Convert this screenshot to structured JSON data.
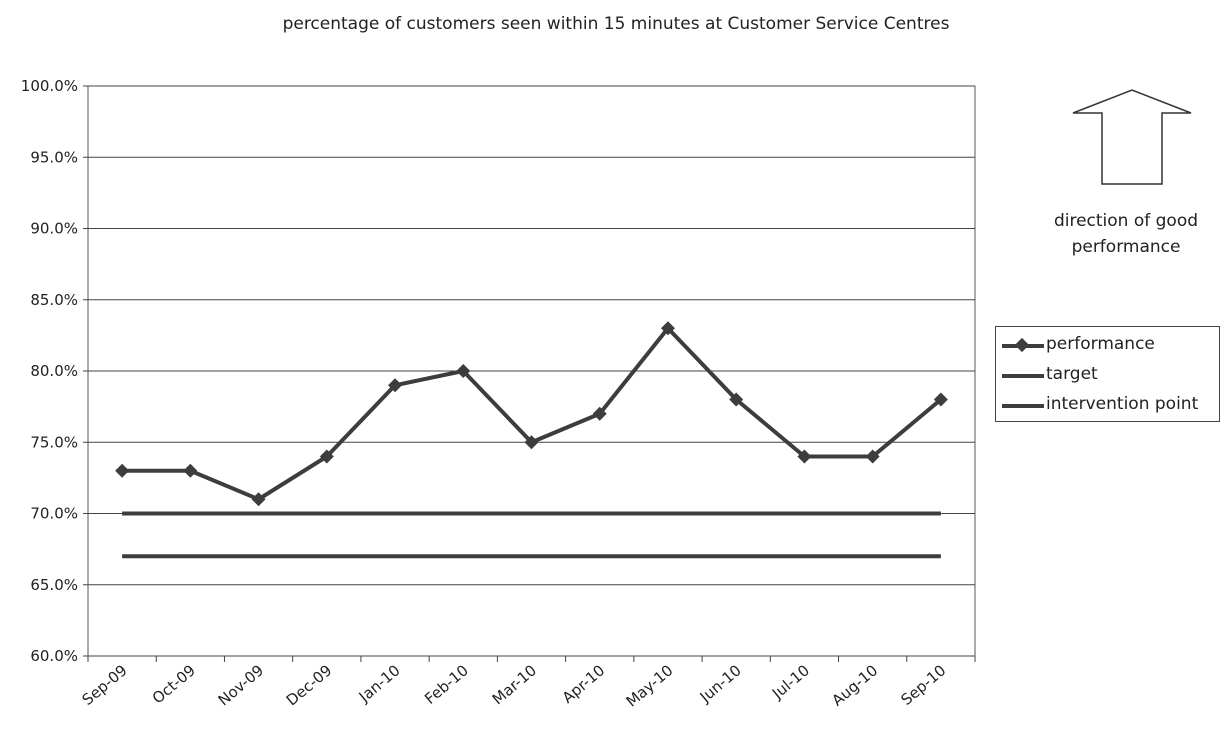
{
  "chart_data": {
    "type": "line",
    "title": "percentage of customers seen within 15 minutes at Customer Service Centres",
    "categories": [
      "Sep-09",
      "Oct-09",
      "Nov-09",
      "Dec-09",
      "Jan-10",
      "Feb-10",
      "Mar-10",
      "Apr-10",
      "May-10",
      "Jun-10",
      "Jul-10",
      "Aug-10",
      "Sep-10"
    ],
    "series": [
      {
        "name": "performance",
        "values": [
          73.0,
          73.0,
          71.0,
          74.0,
          79.0,
          80.0,
          75.0,
          77.0,
          83.0,
          78.0,
          74.0,
          74.0,
          78.0
        ],
        "marker": "diamond"
      },
      {
        "name": "target",
        "values": [
          70.0,
          70.0,
          70.0,
          70.0,
          70.0,
          70.0,
          70.0,
          70.0,
          70.0,
          70.0,
          70.0,
          70.0,
          70.0
        ]
      },
      {
        "name": "intervention point",
        "values": [
          67.0,
          67.0,
          67.0,
          67.0,
          67.0,
          67.0,
          67.0,
          67.0,
          67.0,
          67.0,
          67.0,
          67.0,
          67.0
        ]
      }
    ],
    "ylim": [
      60.0,
      100.0
    ],
    "yticks": [
      "60.0%",
      "65.0%",
      "70.0%",
      "75.0%",
      "80.0%",
      "85.0%",
      "90.0%",
      "95.0%",
      "100.0%"
    ],
    "xlabel": "",
    "ylabel": "",
    "grid": true,
    "legend_position": "right",
    "series_color": "#3d3d3d",
    "annotation": {
      "text": "direction of good performance",
      "icon": "up-arrow-icon"
    }
  }
}
